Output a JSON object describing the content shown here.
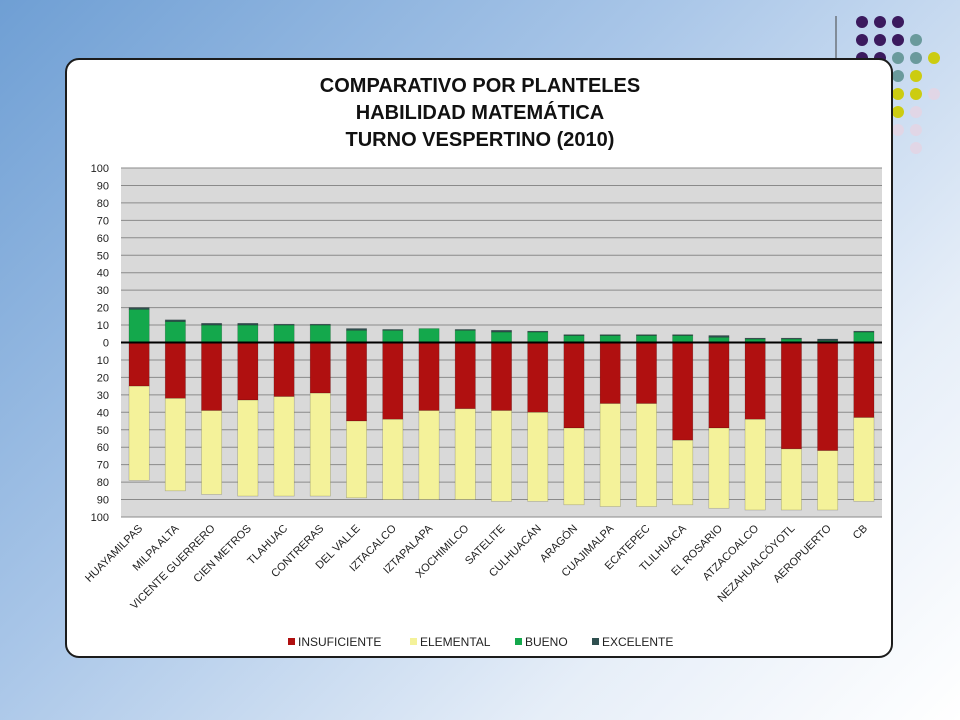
{
  "chart_data": {
    "type": "bar",
    "stacked": "diverging",
    "title": [
      "COMPARATIVO POR PLANTELES",
      "HABILIDAD MATEMÁTICA",
      "TURNO VESPERTINO (2010)"
    ],
    "xlabel": "",
    "ylabel": "",
    "ylim": [
      -100,
      100
    ],
    "y_ticks": [
      100,
      90,
      80,
      70,
      60,
      50,
      40,
      30,
      20,
      10,
      0,
      10,
      20,
      30,
      40,
      50,
      60,
      70,
      80,
      90,
      100
    ],
    "grid": true,
    "legend_position": "bottom",
    "categories": [
      "HUAYAMILPAS",
      "MILPA ALTA",
      "VICENTE GUERRERO",
      "CIEN METROS",
      "TLAHUAC",
      "CONTRERAS",
      "DEL VALLE",
      "IZTACALCO",
      "IZTAPALAPA",
      "XOCHIMILCO",
      "SATELITE",
      "CULHUACÁN",
      "ARAGÓN",
      "CUAJIMALPA",
      "ECATEPEC",
      "TLILHUACA",
      "EL ROSARIO",
      "ATZACOALCO",
      "NEZAHUALCÓYOTL",
      "AEROPUERTO",
      "CB"
    ],
    "series": [
      {
        "name": "INSUFICIENTE",
        "direction": "down",
        "color": "#b01010",
        "values": [
          25,
          32,
          39,
          33,
          31,
          29,
          45,
          44,
          39,
          38,
          39,
          40,
          49,
          35,
          35,
          56,
          49,
          44,
          61,
          62,
          43
        ]
      },
      {
        "name": "ELEMENTAL",
        "direction": "down",
        "color": "#f4f29a",
        "values": [
          54,
          53,
          48,
          55,
          57,
          59,
          44,
          46,
          51,
          52,
          52,
          51,
          44,
          59,
          59,
          37,
          46,
          52,
          35,
          34,
          48
        ]
      },
      {
        "name": "BUENO",
        "direction": "up",
        "color": "#14a84c",
        "values": [
          19,
          12,
          10,
          10,
          10,
          10,
          7,
          7,
          8,
          7,
          6,
          6,
          4,
          4,
          4,
          4,
          3,
          2,
          2,
          1,
          6
        ]
      },
      {
        "name": "EXCELENTE",
        "direction": "up",
        "color": "#2f4f4f",
        "values": [
          1,
          1,
          1,
          1,
          0.5,
          0.5,
          1,
          0.5,
          0,
          0.5,
          1,
          0.5,
          0.5,
          0.5,
          0.5,
          0.5,
          1,
          0.5,
          0.5,
          1,
          0.5
        ]
      }
    ]
  },
  "decor": {
    "dot_colors": {
      "purple": "#3b1a5e",
      "teal": "#6a9a9c",
      "yellow": "#cccc11",
      "lavender": "#e1d6e6"
    }
  }
}
